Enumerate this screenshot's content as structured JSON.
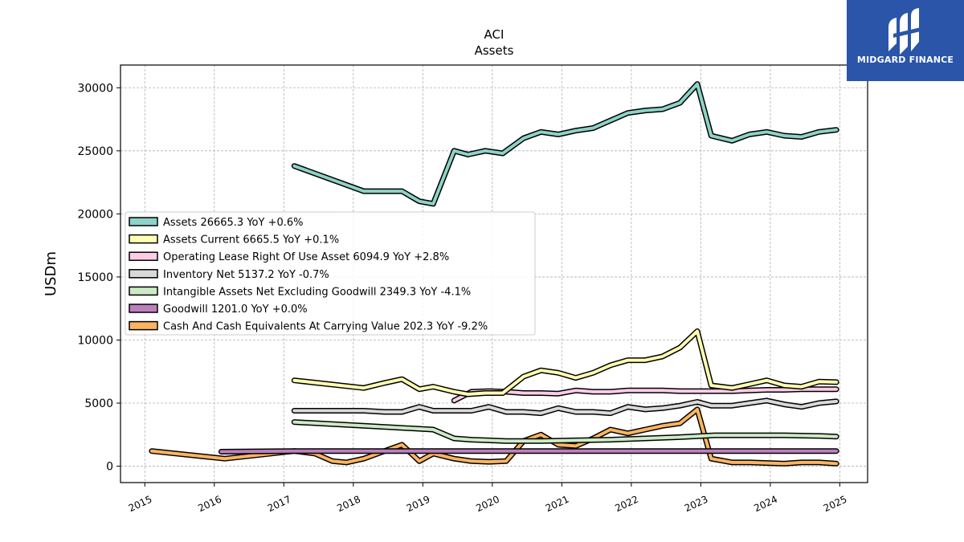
{
  "chart_data": {
    "type": "line",
    "title": "ACI",
    "subtitle": "Assets",
    "ylabel": "USDm",
    "xlabel": "",
    "xlim": [
      2014.65,
      2025.4
    ],
    "ylim": [
      -1300,
      31800
    ],
    "x_ticks": [
      2015,
      2016,
      2017,
      2018,
      2019,
      2020,
      2021,
      2022,
      2023,
      2024,
      2025
    ],
    "y_ticks": [
      0,
      5000,
      10000,
      15000,
      20000,
      25000,
      30000
    ],
    "grid": true,
    "legend_position": "center-left",
    "series": [
      {
        "name": "Assets",
        "legend": "Assets  26665.3 YoY +0.6%",
        "color": "#8dd3c7",
        "points": [
          [
            2017.15,
            23800
          ],
          [
            2018.15,
            21800
          ],
          [
            2018.7,
            21800
          ],
          [
            2018.95,
            21000
          ],
          [
            2019.15,
            20800
          ],
          [
            2019.45,
            25000
          ],
          [
            2019.65,
            24700
          ],
          [
            2019.9,
            25000
          ],
          [
            2020.15,
            24800
          ],
          [
            2020.45,
            26000
          ],
          [
            2020.7,
            26500
          ],
          [
            2020.95,
            26300
          ],
          [
            2021.2,
            26600
          ],
          [
            2021.45,
            26800
          ],
          [
            2021.7,
            27400
          ],
          [
            2021.95,
            28000
          ],
          [
            2022.2,
            28200
          ],
          [
            2022.45,
            28300
          ],
          [
            2022.7,
            28800
          ],
          [
            2022.95,
            30300
          ],
          [
            2023.15,
            26200
          ],
          [
            2023.45,
            25800
          ],
          [
            2023.7,
            26300
          ],
          [
            2023.95,
            26500
          ],
          [
            2024.2,
            26200
          ],
          [
            2024.45,
            26100
          ],
          [
            2024.7,
            26500
          ],
          [
            2024.95,
            26665
          ]
        ]
      },
      {
        "name": "Assets Current",
        "legend": "Assets Current  6665.5 YoY +0.1%",
        "color": "#ffffb3",
        "points": [
          [
            2017.15,
            6800
          ],
          [
            2018.15,
            6200
          ],
          [
            2018.45,
            6600
          ],
          [
            2018.7,
            6900
          ],
          [
            2018.95,
            6100
          ],
          [
            2019.15,
            6300
          ],
          [
            2019.45,
            5900
          ],
          [
            2019.65,
            5700
          ],
          [
            2019.9,
            5800
          ],
          [
            2020.15,
            5800
          ],
          [
            2020.45,
            7100
          ],
          [
            2020.7,
            7600
          ],
          [
            2020.95,
            7400
          ],
          [
            2021.2,
            7000
          ],
          [
            2021.45,
            7400
          ],
          [
            2021.7,
            8000
          ],
          [
            2021.95,
            8400
          ],
          [
            2022.2,
            8400
          ],
          [
            2022.45,
            8700
          ],
          [
            2022.7,
            9400
          ],
          [
            2022.95,
            10700
          ],
          [
            2023.15,
            6400
          ],
          [
            2023.45,
            6200
          ],
          [
            2023.7,
            6500
          ],
          [
            2023.95,
            6800
          ],
          [
            2024.2,
            6400
          ],
          [
            2024.45,
            6300
          ],
          [
            2024.7,
            6700
          ],
          [
            2024.95,
            6665
          ]
        ]
      },
      {
        "name": "Operating Lease Right Of Use Asset",
        "legend": "Operating Lease Right Of Use Asset  6094.9 YoY +2.8%",
        "color": "#fccde5",
        "points": [
          [
            2019.45,
            5200
          ],
          [
            2019.7,
            5900
          ],
          [
            2019.95,
            5950
          ],
          [
            2020.2,
            5900
          ],
          [
            2020.45,
            5800
          ],
          [
            2020.7,
            5800
          ],
          [
            2020.95,
            5750
          ],
          [
            2021.2,
            6000
          ],
          [
            2021.45,
            5900
          ],
          [
            2021.7,
            5900
          ],
          [
            2021.95,
            6000
          ],
          [
            2022.2,
            6000
          ],
          [
            2022.45,
            6000
          ],
          [
            2022.7,
            5950
          ],
          [
            2022.95,
            5950
          ],
          [
            2023.2,
            5950
          ],
          [
            2023.45,
            5950
          ],
          [
            2023.7,
            6000
          ],
          [
            2023.95,
            6050
          ],
          [
            2024.2,
            6050
          ],
          [
            2024.45,
            6100
          ],
          [
            2024.7,
            6100
          ],
          [
            2024.95,
            6095
          ]
        ]
      },
      {
        "name": "Inventory Net",
        "legend": "Inventory Net  5137.2 YoY -0.7%",
        "color": "#d9d9d9",
        "points": [
          [
            2017.15,
            4400
          ],
          [
            2018.15,
            4400
          ],
          [
            2018.45,
            4300
          ],
          [
            2018.7,
            4300
          ],
          [
            2018.95,
            4700
          ],
          [
            2019.15,
            4400
          ],
          [
            2019.45,
            4400
          ],
          [
            2019.7,
            4400
          ],
          [
            2019.95,
            4700
          ],
          [
            2020.2,
            4300
          ],
          [
            2020.45,
            4300
          ],
          [
            2020.7,
            4200
          ],
          [
            2020.95,
            4600
          ],
          [
            2021.2,
            4300
          ],
          [
            2021.45,
            4300
          ],
          [
            2021.7,
            4200
          ],
          [
            2021.95,
            4700
          ],
          [
            2022.2,
            4500
          ],
          [
            2022.45,
            4600
          ],
          [
            2022.7,
            4800
          ],
          [
            2022.95,
            5100
          ],
          [
            2023.15,
            4800
          ],
          [
            2023.45,
            4800
          ],
          [
            2023.7,
            5000
          ],
          [
            2023.95,
            5200
          ],
          [
            2024.2,
            4900
          ],
          [
            2024.45,
            4700
          ],
          [
            2024.7,
            5000
          ],
          [
            2024.95,
            5137
          ]
        ]
      },
      {
        "name": "Intangible Assets Net Excluding Goodwill",
        "legend": "Intangible Assets Net Excluding Goodwill  2349.3 YoY -4.1%",
        "color": "#ccebc5",
        "points": [
          [
            2017.15,
            3500
          ],
          [
            2018.15,
            3200
          ],
          [
            2019.15,
            2900
          ],
          [
            2019.45,
            2200
          ],
          [
            2019.7,
            2100
          ],
          [
            2019.95,
            2050
          ],
          [
            2020.2,
            2000
          ],
          [
            2020.7,
            2000
          ],
          [
            2021.2,
            2050
          ],
          [
            2021.7,
            2100
          ],
          [
            2022.2,
            2200
          ],
          [
            2022.7,
            2300
          ],
          [
            2023.2,
            2450
          ],
          [
            2023.7,
            2450
          ],
          [
            2024.2,
            2450
          ],
          [
            2024.7,
            2400
          ],
          [
            2024.95,
            2349
          ]
        ]
      },
      {
        "name": "Goodwill",
        "legend": "Goodwill  1201.0 YoY +0.0%",
        "color": "#bc80bd",
        "points": [
          [
            2016.1,
            1150
          ],
          [
            2017.15,
            1200
          ],
          [
            2018.15,
            1200
          ],
          [
            2019.15,
            1200
          ],
          [
            2020.15,
            1200
          ],
          [
            2021.15,
            1200
          ],
          [
            2022.15,
            1200
          ],
          [
            2023.15,
            1200
          ],
          [
            2024.15,
            1200
          ],
          [
            2024.95,
            1201
          ]
        ]
      },
      {
        "name": "Cash And Cash Equivalents At Carrying Value",
        "legend": "Cash And Cash Equivalents At Carrying Value  202.3 YoY -9.2%",
        "color": "#fdb462",
        "points": [
          [
            2015.1,
            1200
          ],
          [
            2016.15,
            600
          ],
          [
            2017.15,
            1200
          ],
          [
            2017.45,
            1000
          ],
          [
            2017.7,
            400
          ],
          [
            2017.9,
            300
          ],
          [
            2018.15,
            600
          ],
          [
            2018.45,
            1200
          ],
          [
            2018.7,
            1700
          ],
          [
            2018.95,
            400
          ],
          [
            2019.15,
            1000
          ],
          [
            2019.45,
            600
          ],
          [
            2019.7,
            400
          ],
          [
            2019.95,
            350
          ],
          [
            2020.2,
            400
          ],
          [
            2020.45,
            2000
          ],
          [
            2020.7,
            2500
          ],
          [
            2020.95,
            1700
          ],
          [
            2021.2,
            1600
          ],
          [
            2021.45,
            2200
          ],
          [
            2021.7,
            2900
          ],
          [
            2021.95,
            2600
          ],
          [
            2022.2,
            2900
          ],
          [
            2022.45,
            3200
          ],
          [
            2022.7,
            3400
          ],
          [
            2022.95,
            4500
          ],
          [
            2023.15,
            600
          ],
          [
            2023.45,
            300
          ],
          [
            2023.7,
            300
          ],
          [
            2023.95,
            250
          ],
          [
            2024.2,
            200
          ],
          [
            2024.45,
            300
          ],
          [
            2024.7,
            300
          ],
          [
            2024.95,
            202
          ]
        ]
      }
    ]
  },
  "logo": {
    "text": "MIDGARD FINANCE"
  }
}
